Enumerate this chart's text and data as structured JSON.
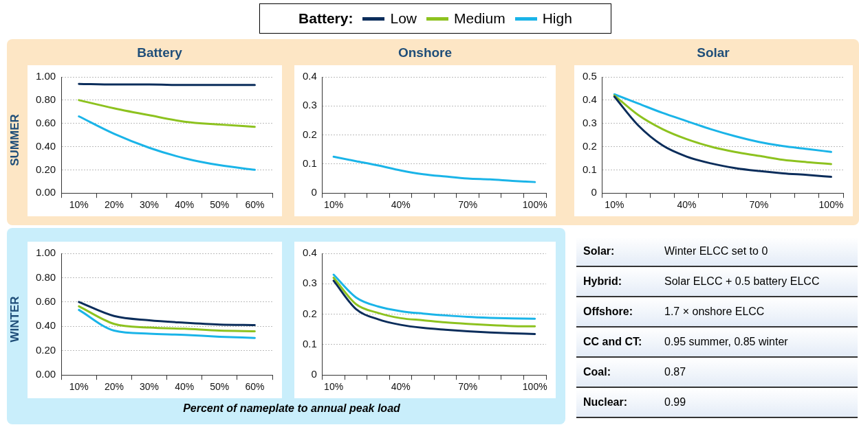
{
  "chart_data": [
    {
      "type": "line",
      "title": "Battery",
      "ylabel": "SUMMER",
      "legend": "top",
      "legend_title": "Battery:",
      "grid": "y",
      "marker": "none",
      "line_style": "solid",
      "categories": [
        "10%",
        "20%",
        "30%",
        "40%",
        "50%",
        "60%"
      ],
      "ylim": [
        0,
        1
      ],
      "yticks": [
        {
          "value": 0,
          "label": "0.00"
        },
        {
          "value": 0.2,
          "label": "0.20"
        },
        {
          "value": 0.4,
          "label": "0.40"
        },
        {
          "value": 0.6,
          "label": "0.60"
        },
        {
          "value": 0.8,
          "label": "0.80"
        },
        {
          "value": 1,
          "label": "1.00"
        }
      ],
      "series": [
        {
          "name": "Low",
          "color": "#0b2d5b",
          "values": [
            0.94,
            0.935,
            0.935,
            0.93,
            0.93,
            0.93
          ]
        },
        {
          "name": "Medium",
          "color": "#8dc21f",
          "values": [
            0.8,
            0.73,
            0.67,
            0.615,
            0.59,
            0.57
          ]
        },
        {
          "name": "High",
          "color": "#1ab4e8",
          "values": [
            0.66,
            0.51,
            0.39,
            0.3,
            0.24,
            0.2
          ]
        }
      ]
    },
    {
      "type": "line",
      "title": "Onshore",
      "grid": "y",
      "marker": "none",
      "line_style": "solid",
      "categories": [
        "10%",
        null,
        null,
        "40%",
        null,
        null,
        "70%",
        null,
        null,
        "100%"
      ],
      "ylim": [
        0,
        0.4
      ],
      "yticks": [
        0,
        0.1,
        0.2,
        0.3,
        0.4
      ],
      "series": [
        {
          "color": "#1ab4e8",
          "values": [
            0.125,
            0.11,
            0.095,
            0.078,
            0.065,
            0.057,
            0.05,
            0.047,
            0.042,
            0.038
          ]
        }
      ]
    },
    {
      "type": "line",
      "title": "Solar",
      "grid": "y",
      "marker": "none",
      "line_style": "solid",
      "categories": [
        "10%",
        null,
        null,
        "40%",
        null,
        null,
        "70%",
        null,
        null,
        "100%"
      ],
      "ylim": [
        0,
        0.5
      ],
      "yticks": [
        0,
        0.1,
        0.2,
        0.3,
        0.4,
        0.5
      ],
      "series": [
        {
          "color": "#0b2d5b",
          "values": [
            0.415,
            0.29,
            0.205,
            0.157,
            0.128,
            0.108,
            0.095,
            0.085,
            0.078,
            0.07
          ]
        },
        {
          "color": "#8dc21f",
          "values": [
            0.42,
            0.335,
            0.275,
            0.232,
            0.2,
            0.177,
            0.16,
            0.143,
            0.133,
            0.125
          ]
        },
        {
          "color": "#1ab4e8",
          "values": [
            0.425,
            0.385,
            0.345,
            0.31,
            0.275,
            0.245,
            0.22,
            0.202,
            0.19,
            0.177
          ]
        }
      ]
    },
    {
      "type": "line",
      "ylabel": "WINTER",
      "xlabel": "Percent of nameplate to annual peak load",
      "grid": "y",
      "marker": "none",
      "line_style": "solid",
      "categories": [
        "10%",
        "20%",
        "30%",
        "40%",
        "50%",
        "60%"
      ],
      "ylim": [
        0,
        1
      ],
      "yticks": [
        {
          "value": 0,
          "label": "0.00"
        },
        {
          "value": 0.2,
          "label": "0.20"
        },
        {
          "value": 0.4,
          "label": "0.40"
        },
        {
          "value": 0.6,
          "label": "0.60"
        },
        {
          "value": 0.8,
          "label": "0.80"
        },
        {
          "value": 1,
          "label": "1.00"
        }
      ],
      "series": [
        {
          "color": "#0b2d5b",
          "values": [
            0.6,
            0.485,
            0.45,
            0.43,
            0.415,
            0.41
          ]
        },
        {
          "color": "#8dc21f",
          "values": [
            0.565,
            0.42,
            0.39,
            0.38,
            0.365,
            0.36
          ]
        },
        {
          "color": "#1ab4e8",
          "values": [
            0.535,
            0.365,
            0.34,
            0.33,
            0.315,
            0.305
          ]
        }
      ]
    },
    {
      "type": "line",
      "grid": "y",
      "marker": "none",
      "line_style": "solid",
      "categories": [
        "10%",
        null,
        null,
        "40%",
        null,
        null,
        "70%",
        null,
        null,
        "100%"
      ],
      "ylim": [
        0,
        0.4
      ],
      "yticks": [
        0,
        0.1,
        0.2,
        0.3,
        0.4
      ],
      "series": [
        {
          "color": "#0b2d5b",
          "values": [
            0.31,
            0.217,
            0.183,
            0.165,
            0.155,
            0.149,
            0.144,
            0.14,
            0.137,
            0.135
          ]
        },
        {
          "color": "#8dc21f",
          "values": [
            0.32,
            0.233,
            0.204,
            0.187,
            0.18,
            0.173,
            0.168,
            0.164,
            0.161,
            0.16
          ]
        },
        {
          "color": "#1ab4e8",
          "values": [
            0.33,
            0.255,
            0.225,
            0.21,
            0.202,
            0.196,
            0.191,
            0.188,
            0.186,
            0.185
          ]
        }
      ]
    },
    {
      "type": "other",
      "annotations": [
        "Solar:",
        "Winter ELCC set to 0",
        "Hybrid:",
        "Solar ELCC + 0.5 battery ELCC",
        "Offshore:",
        "1.7 × onshore ELCC",
        "CC and CT:",
        "0.95 summer, 0.85 winter",
        "Coal:",
        "0.87",
        "Nuclear:",
        "0.99"
      ]
    }
  ]
}
